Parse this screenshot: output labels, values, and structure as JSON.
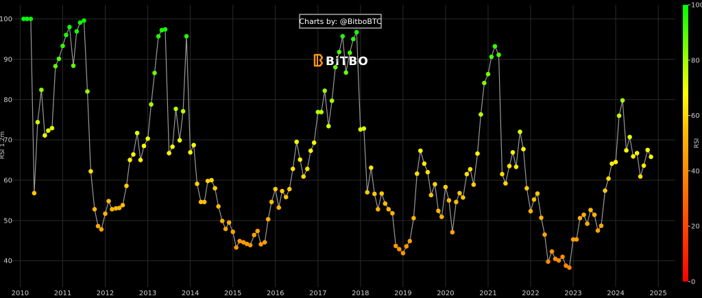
{
  "credit": "Charts by: @BitboBTC",
  "logo_text": "BiTBO",
  "chart_data": {
    "type": "scatter",
    "mode": "lines+markers",
    "ylabel": "RSI 1.2m",
    "colorbar_label": "RSI",
    "colorbar_ticks": [
      0,
      20,
      40,
      60,
      80,
      100
    ],
    "colorscale": [
      "#ff0000",
      "#ffbf00",
      "#ffff00",
      "#00ff00"
    ],
    "grid": true,
    "xlim": [
      2009.8,
      2025.4
    ],
    "ylim": [
      33.5,
      103.5
    ],
    "x_ticks": [
      2010,
      2011,
      2012,
      2013,
      2014,
      2015,
      2016,
      2017,
      2018,
      2019,
      2020,
      2021,
      2022,
      2023,
      2024,
      2025
    ],
    "y_ticks": [
      40,
      50,
      60,
      70,
      80,
      90,
      100
    ],
    "series": [
      {
        "x": [
          2010.08,
          2010.16,
          2010.25,
          2010.33,
          2010.41,
          2010.5,
          2010.58,
          2010.66,
          2010.75,
          2010.83,
          2010.91,
          2011.0,
          2011.08,
          2011.16,
          2011.25,
          2011.33,
          2011.41,
          2011.5,
          2011.58,
          2011.66,
          2011.75,
          2011.83,
          2011.91,
          2012.0,
          2012.08,
          2012.16,
          2012.25,
          2012.33,
          2012.41,
          2012.5,
          2012.58,
          2012.66,
          2012.75,
          2012.83,
          2012.91,
          2013.0,
          2013.08,
          2013.16,
          2013.25,
          2013.33,
          2013.41,
          2013.5,
          2013.58,
          2013.66,
          2013.75,
          2013.83,
          2013.91,
          2014.0,
          2014.08,
          2014.16,
          2014.25,
          2014.33,
          2014.41,
          2014.5,
          2014.58,
          2014.66,
          2014.75,
          2014.83,
          2014.91,
          2015.0,
          2015.08,
          2015.16,
          2015.25,
          2015.33,
          2015.41,
          2015.5,
          2015.58,
          2015.66,
          2015.75,
          2015.83,
          2015.91,
          2016.0,
          2016.08,
          2016.16,
          2016.25,
          2016.33,
          2016.41,
          2016.5,
          2016.58,
          2016.66,
          2016.75,
          2016.83,
          2016.91,
          2017.0,
          2017.08,
          2017.16,
          2017.25,
          2017.33,
          2017.41,
          2017.5,
          2017.58,
          2017.66,
          2017.75,
          2017.83,
          2017.91,
          2018.0,
          2018.08,
          2018.16,
          2018.25,
          2018.33,
          2018.41,
          2018.5,
          2018.58,
          2018.66,
          2018.75,
          2018.83,
          2018.91,
          2019.0,
          2019.08,
          2019.16,
          2019.25,
          2019.33,
          2019.41,
          2019.5,
          2019.58,
          2019.66,
          2019.75,
          2019.83,
          2019.91,
          2020.0,
          2020.08,
          2020.16,
          2020.25,
          2020.33,
          2020.41,
          2020.5,
          2020.58,
          2020.66,
          2020.75,
          2020.83,
          2020.91,
          2021.0,
          2021.08,
          2021.16,
          2021.25,
          2021.33,
          2021.41,
          2021.5,
          2021.58,
          2021.66,
          2021.75,
          2021.83,
          2021.91,
          2022.0,
          2022.08,
          2022.16,
          2022.25,
          2022.33,
          2022.41,
          2022.5,
          2022.58,
          2022.66,
          2022.75,
          2022.83,
          2022.91,
          2023.0,
          2023.08,
          2023.16,
          2023.25,
          2023.33,
          2023.41,
          2023.5,
          2023.58,
          2023.66,
          2023.75,
          2023.83,
          2023.91,
          2024.0,
          2024.08,
          2024.16,
          2024.25,
          2024.33,
          2024.41,
          2024.5,
          2024.58,
          2024.66,
          2024.75,
          2024.83
        ],
        "y": [
          100.0,
          100.0,
          100.0,
          56.8,
          74.4,
          82.4,
          71.1,
          72.3,
          72.9,
          88.3,
          90.1,
          93.3,
          96.0,
          98.0,
          88.4,
          96.9,
          99.1,
          99.6,
          82.0,
          62.2,
          52.8,
          48.6,
          47.8,
          51.7,
          54.8,
          52.8,
          53.0,
          53.1,
          53.8,
          58.6,
          65.0,
          66.4,
          71.7,
          65.0,
          68.5,
          70.3,
          78.8,
          86.6,
          95.7,
          97.2,
          97.4,
          66.7,
          68.3,
          77.7,
          69.9,
          77.1,
          95.7,
          66.9,
          68.7,
          59.1,
          54.6,
          54.6,
          59.8,
          60.0,
          58.0,
          53.5,
          49.9,
          47.9,
          49.5,
          47.2,
          43.3,
          44.9,
          44.6,
          44.2,
          43.9,
          46.4,
          47.4,
          44.1,
          44.6,
          50.3,
          54.6,
          57.8,
          53.2,
          57.3,
          55.8,
          57.8,
          62.8,
          69.5,
          65.1,
          60.9,
          62.8,
          67.3,
          69.3,
          76.9,
          76.9,
          82.2,
          73.4,
          79.7,
          88.0,
          91.8,
          95.7,
          86.7,
          91.6,
          95.0,
          96.7,
          72.6,
          72.8,
          57.0,
          63.1,
          56.6,
          52.8,
          56.7,
          54.2,
          52.8,
          51.8,
          43.7,
          42.9,
          41.9,
          43.6,
          44.9,
          50.6,
          61.6,
          67.3,
          64.1,
          62.0,
          56.3,
          59.0,
          52.4,
          50.9,
          58.3,
          55.0,
          47.1,
          54.6,
          56.8,
          55.7,
          61.5,
          62.7,
          58.9,
          66.6,
          76.3,
          84.1,
          86.3,
          90.6,
          93.2,
          91.1,
          61.5,
          59.2,
          63.5,
          66.9,
          63.3,
          72.0,
          67.7,
          58.0,
          52.3,
          55.2,
          56.7,
          50.7,
          46.5,
          39.8,
          42.3,
          40.5,
          40.1,
          41.0,
          38.8,
          38.3,
          45.3,
          45.3,
          50.6,
          51.4,
          49.2,
          52.6,
          51.4,
          47.5,
          48.7,
          57.4,
          60.4,
          64.1,
          64.5,
          76.0,
          79.8,
          67.4,
          70.7,
          65.9,
          66.7,
          60.9,
          63.6,
          67.5,
          65.8
        ]
      }
    ]
  }
}
